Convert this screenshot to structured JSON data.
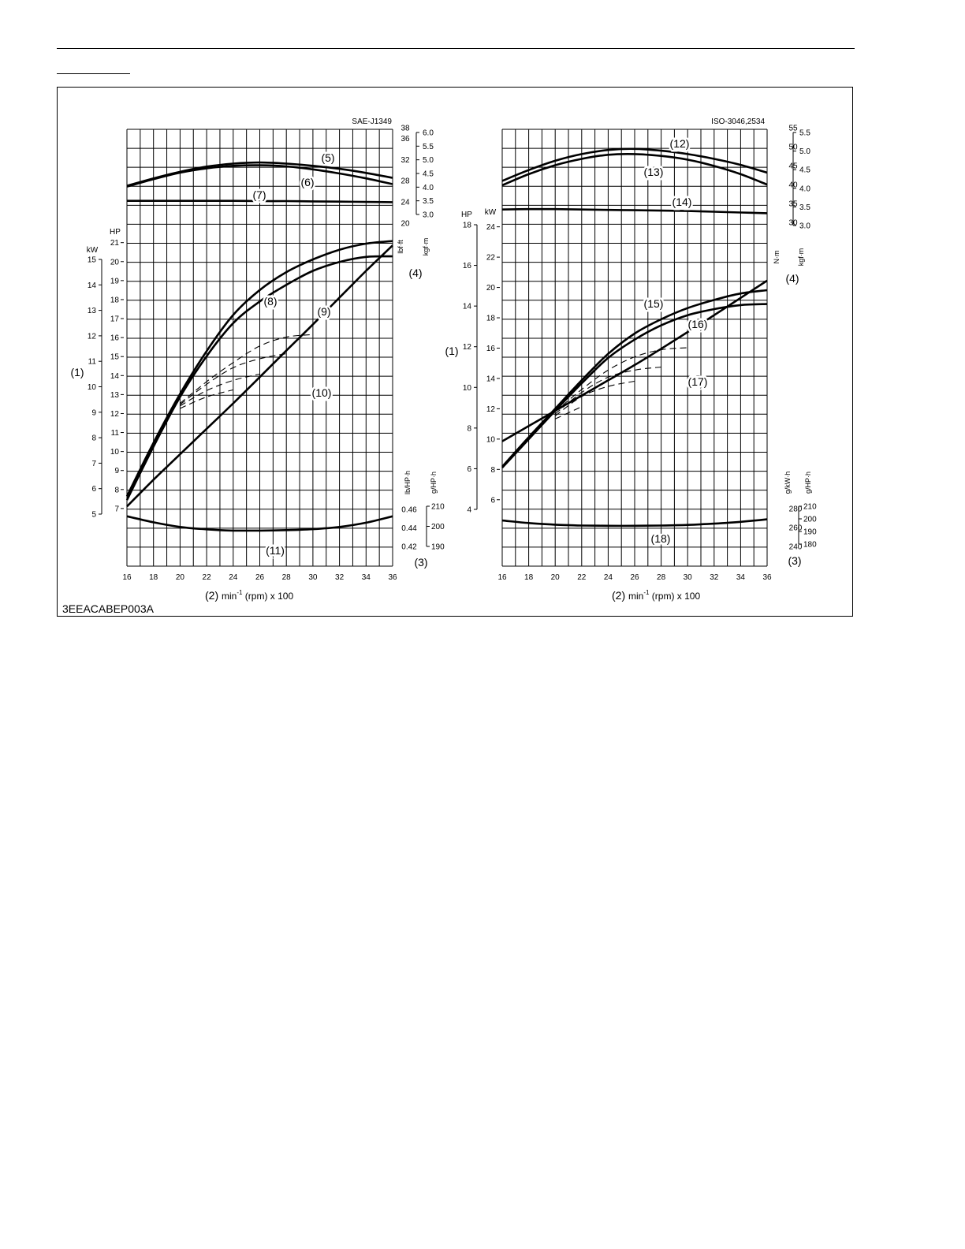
{
  "figure_id": "3EEACABEP003A",
  "chart_data": [
    {
      "type": "line",
      "standard": "SAE-J1349",
      "x_unit_label": "min-1 (rpm) x 100",
      "x_label_ref": "(2)",
      "left_axis_ref": "(1)",
      "torque_axis_ref": "(4)",
      "fuel_axis_ref": "(3)",
      "xlim": [
        16,
        36
      ],
      "x_ticks": [
        16,
        18,
        20,
        22,
        24,
        26,
        28,
        30,
        32,
        34,
        36
      ],
      "grid": true,
      "power_axes": {
        "kw_label": "kW",
        "hp_label": "HP",
        "kw_ticks": [
          5,
          6,
          7,
          8,
          9,
          10,
          11,
          12,
          13,
          14,
          15
        ],
        "hp_ticks": [
          7,
          8,
          9,
          10,
          11,
          12,
          13,
          14,
          15,
          16,
          17,
          18,
          19,
          20,
          21
        ]
      },
      "torque_axes": {
        "primary_label": "lbf·ft",
        "secondary_label": "kgf·m",
        "primary_ticks": [
          20,
          24,
          28,
          32,
          36,
          38
        ],
        "secondary_ticks": [
          3.0,
          3.5,
          4.0,
          4.5,
          5.0,
          5.5,
          6.0
        ]
      },
      "fuel_axes": {
        "primary_label": "lb/HP·h",
        "secondary_label": "g/HP·h",
        "primary_ticks": [
          0.42,
          0.44,
          0.46
        ],
        "secondary_ticks": [
          190,
          200,
          210
        ]
      },
      "series": [
        {
          "name": "(5)",
          "style": "solid",
          "x": [
            16,
            18,
            20,
            22,
            24,
            26,
            28,
            30,
            32,
            34,
            36
          ],
          "y": [
            4.05,
            4.32,
            4.56,
            4.75,
            4.86,
            4.9,
            4.86,
            4.78,
            4.67,
            4.52,
            4.34
          ]
        },
        {
          "name": "(6)",
          "style": "solid",
          "x": [
            16,
            18,
            20,
            22,
            24,
            26,
            28,
            30,
            32,
            34,
            36
          ],
          "y": [
            4.02,
            4.29,
            4.53,
            4.69,
            4.78,
            4.8,
            4.76,
            4.65,
            4.5,
            4.32,
            4.11
          ]
        },
        {
          "name": "(7)",
          "style": "solid",
          "x": [
            16,
            18,
            20,
            22,
            24,
            26,
            28,
            30,
            32,
            34,
            36
          ],
          "y": [
            3.5,
            3.5,
            3.5,
            3.5,
            3.5,
            3.49,
            3.49,
            3.48,
            3.47,
            3.46,
            3.45
          ]
        },
        {
          "name": "(8)",
          "style": "solid",
          "x": [
            16,
            18,
            20,
            22,
            24,
            26,
            28,
            30,
            32,
            34,
            36
          ],
          "y": [
            5.7,
            7.8,
            9.72,
            11.4,
            12.82,
            13.8,
            14.5,
            15.0,
            15.38,
            15.62,
            15.72
          ]
        },
        {
          "name": "(9)",
          "style": "solid",
          "x": [
            16,
            18,
            20,
            22,
            24,
            26,
            28,
            30,
            32,
            34,
            36
          ],
          "y": [
            5.55,
            7.65,
            9.6,
            11.2,
            12.5,
            13.35,
            14.0,
            14.55,
            14.9,
            15.1,
            15.12
          ]
        },
        {
          "name": "(10)",
          "style": "solid",
          "x": [
            16,
            18,
            20,
            22,
            24,
            26,
            28,
            30,
            32,
            34,
            36
          ],
          "y": [
            5.3,
            6.35,
            7.35,
            8.35,
            9.35,
            10.38,
            11.42,
            12.45,
            13.5,
            14.55,
            15.55
          ]
        },
        {
          "name": "",
          "style": "dashed",
          "x": [
            20,
            22,
            24,
            26,
            28,
            30
          ],
          "y": [
            9.35,
            10.2,
            10.95,
            11.6,
            11.95,
            12.05
          ]
        },
        {
          "name": "",
          "style": "dashed",
          "x": [
            20,
            22,
            24,
            26,
            28
          ],
          "y": [
            9.3,
            10.1,
            10.75,
            11.1,
            11.3
          ]
        },
        {
          "name": "",
          "style": "dashed",
          "x": [
            20,
            22,
            24,
            26
          ],
          "y": [
            9.25,
            9.85,
            10.25,
            10.5
          ]
        },
        {
          "name": "",
          "style": "dashed",
          "x": [
            20,
            22,
            24
          ],
          "y": [
            9.15,
            9.6,
            9.88
          ]
        },
        {
          "name": "(11)",
          "style": "solid",
          "x": [
            16,
            18,
            20,
            22,
            24,
            26,
            28,
            30,
            32,
            34,
            36
          ],
          "y": [
            205.0,
            202.0,
            199.7,
            198.5,
            197.9,
            197.9,
            198.1,
            198.6,
            199.7,
            201.8,
            205.0
          ]
        }
      ]
    },
    {
      "type": "line",
      "standard": "ISO-3046,2534",
      "x_unit_label": "min-1 (rpm) x 100",
      "x_label_ref": "(2)",
      "left_axis_ref": "(1)",
      "torque_axis_ref": "(4)",
      "fuel_axis_ref": "(3)",
      "xlim": [
        16,
        36
      ],
      "x_ticks": [
        16,
        18,
        20,
        22,
        24,
        26,
        28,
        30,
        32,
        34,
        36
      ],
      "grid": true,
      "power_axes": {
        "kw_label": "kW",
        "hp_label": "HP",
        "kw_ticks": [
          4,
          6,
          8,
          10,
          12,
          14,
          16,
          18
        ],
        "hp_ticks": [
          6,
          8,
          10,
          12,
          14,
          16,
          18,
          20,
          22,
          24
        ]
      },
      "torque_axes": {
        "primary_label": "N·m",
        "secondary_label": "kgf·m",
        "primary_ticks": [
          30,
          35,
          40,
          45,
          50,
          55
        ],
        "secondary_ticks": [
          3.0,
          3.5,
          4.0,
          4.5,
          5.0,
          5.5
        ]
      },
      "fuel_axes": {
        "primary_label": "g/kW·h",
        "secondary_label": "g/HP·h",
        "primary_ticks": [
          240,
          260,
          280
        ],
        "secondary_ticks": [
          180,
          190,
          200,
          210
        ]
      },
      "series": [
        {
          "name": "(12)",
          "style": "solid",
          "x": [
            16,
            18,
            20,
            22,
            24,
            26,
            28,
            30,
            32,
            34,
            36
          ],
          "y": [
            4.2,
            4.49,
            4.74,
            4.92,
            5.03,
            5.06,
            5.01,
            4.92,
            4.79,
            4.63,
            4.42
          ]
        },
        {
          "name": "(13)",
          "style": "solid",
          "x": [
            16,
            18,
            20,
            22,
            24,
            26,
            28,
            30,
            32,
            34,
            36
          ],
          "y": [
            4.08,
            4.38,
            4.62,
            4.79,
            4.9,
            4.92,
            4.87,
            4.77,
            4.6,
            4.38,
            4.1
          ]
        },
        {
          "name": "(14)",
          "style": "solid",
          "x": [
            16,
            18,
            20,
            22,
            24,
            26,
            28,
            30,
            32,
            34,
            36
          ],
          "y": [
            3.43,
            3.44,
            3.44,
            3.43,
            3.42,
            3.41,
            3.4,
            3.39,
            3.37,
            3.35,
            3.33
          ]
        },
        {
          "name": "(15)",
          "style": "solid",
          "x": [
            16,
            18,
            20,
            22,
            24,
            26,
            28,
            30,
            32,
            34,
            36
          ],
          "y": [
            6.1,
            7.55,
            8.95,
            10.35,
            11.65,
            12.65,
            13.35,
            13.9,
            14.3,
            14.62,
            14.78
          ]
        },
        {
          "name": "(16)",
          "style": "solid",
          "x": [
            16,
            18,
            20,
            22,
            24,
            26,
            28,
            30,
            32,
            34,
            36
          ],
          "y": [
            6.05,
            7.45,
            8.85,
            10.2,
            11.45,
            12.35,
            13.05,
            13.55,
            13.85,
            14.05,
            14.1
          ]
        },
        {
          "name": "(17)",
          "style": "solid",
          "x": [
            16,
            18,
            20,
            22,
            24,
            26,
            28,
            30,
            32,
            34,
            36
          ],
          "y": [
            7.35,
            8.1,
            8.85,
            9.6,
            10.35,
            11.1,
            11.9,
            12.72,
            13.55,
            14.4,
            15.25
          ]
        },
        {
          "name": "",
          "style": "dashed",
          "x": [
            20,
            22,
            24,
            26,
            28,
            30
          ],
          "y": [
            8.8,
            9.9,
            10.85,
            11.5,
            11.85,
            11.95
          ]
        },
        {
          "name": "",
          "style": "dashed",
          "x": [
            20,
            22,
            24,
            26,
            28
          ],
          "y": [
            8.7,
            9.75,
            10.5,
            10.85,
            11.0
          ]
        },
        {
          "name": "",
          "style": "dashed",
          "x": [
            20,
            22,
            24,
            26
          ],
          "y": [
            8.6,
            9.55,
            10.05,
            10.3
          ]
        },
        {
          "name": "",
          "style": "dashed",
          "x": [
            20,
            22
          ],
          "y": [
            8.45,
            9.05
          ]
        },
        {
          "name": "(18)",
          "style": "solid",
          "x": [
            16,
            18,
            20,
            22,
            24,
            26,
            28,
            30,
            32,
            34,
            36
          ],
          "y": [
            198.7,
            196.7,
            195.4,
            194.7,
            194.5,
            194.5,
            194.7,
            195.2,
            196.2,
            197.6,
            199.6
          ]
        }
      ]
    }
  ]
}
